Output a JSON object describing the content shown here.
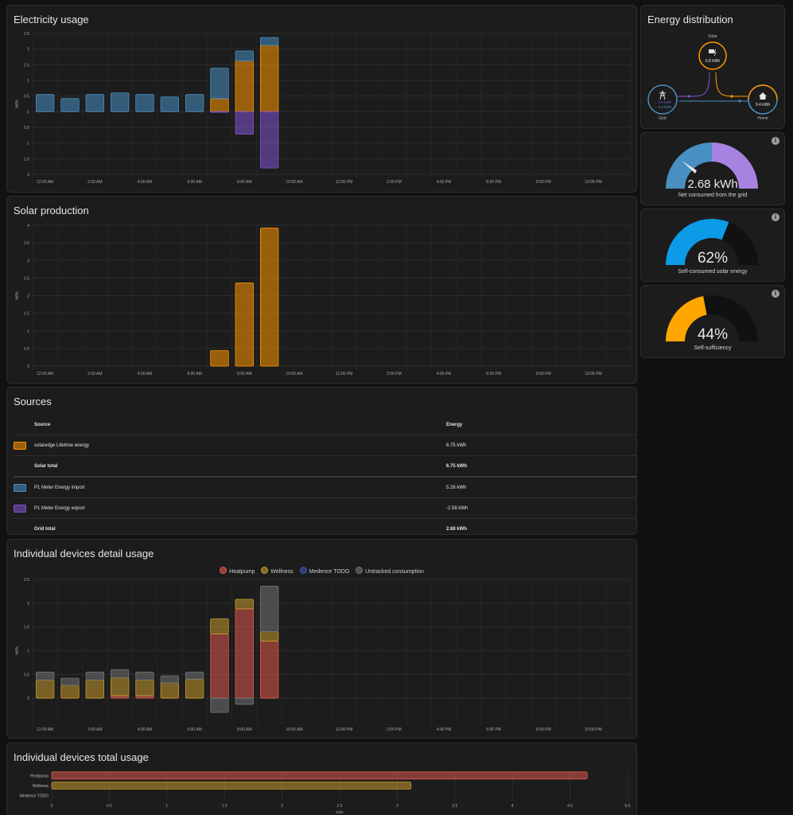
{
  "colors": {
    "grid": "#488fc2",
    "solar": "#ff9800",
    "return": "#8353d1",
    "heatpump": "#e05a4f",
    "wellness": "#c79b2e",
    "medence": "#3f51b5",
    "untracked": "#757575"
  },
  "electricity": {
    "title": "Electricity usage",
    "ylabel": "kWh",
    "yticks_pos": [
      "2.5",
      "2",
      "1.5",
      "1",
      "0.5",
      "0"
    ],
    "yticks_neg": [
      "0.5",
      "1",
      "1.5",
      "2"
    ],
    "xticks": [
      "12:00 AM",
      "2:00 AM",
      "4:00 AM",
      "6:00 AM",
      "8:00 AM",
      "10:00 AM",
      "12:00 PM",
      "2:00 PM",
      "4:00 PM",
      "6:00 PM",
      "8:00 PM",
      "10:00 PM"
    ]
  },
  "chart_data": [
    {
      "type": "bar",
      "title": "Electricity usage",
      "ylabel": "kWh",
      "ylim": [
        -2,
        2.5
      ],
      "hours": [
        0,
        1,
        2,
        3,
        4,
        5,
        6,
        7,
        8,
        9
      ],
      "series": [
        {
          "name": "P1 Meter Energy import",
          "values": [
            0.55,
            0.42,
            0.55,
            0.6,
            0.55,
            0.47,
            0.55,
            0.97,
            0.32,
            0.25
          ]
        },
        {
          "name": "solaredge Lifetime energy",
          "values": [
            0,
            0,
            0,
            0,
            0,
            0,
            0,
            0.42,
            1.62,
            2.12
          ]
        },
        {
          "name": "P1 Meter Energy export",
          "values": [
            0,
            0,
            0,
            0,
            0,
            0,
            0,
            -0.02,
            -0.72,
            -1.8
          ]
        }
      ]
    },
    {
      "type": "bar",
      "title": "Solar production",
      "ylabel": "kWh",
      "ylim": [
        0,
        4
      ],
      "hours": [
        0,
        1,
        2,
        3,
        4,
        5,
        6,
        7,
        8,
        9
      ],
      "values": [
        0,
        0,
        0,
        0,
        0,
        0,
        0,
        0.44,
        2.36,
        3.92
      ]
    },
    {
      "type": "bar",
      "title": "Individual devices detail usage",
      "ylabel": "kWh",
      "ylim": [
        -0.5,
        2.5
      ],
      "hours": [
        0,
        1,
        2,
        3,
        4,
        5,
        6,
        7,
        8,
        9
      ],
      "series": [
        {
          "name": "Heatpump",
          "values": [
            0,
            0,
            0,
            0.05,
            0.05,
            0,
            0,
            1.35,
            1.88,
            1.2
          ]
        },
        {
          "name": "Wellness",
          "values": [
            0.38,
            0.27,
            0.38,
            0.38,
            0.33,
            0.32,
            0.4,
            0.32,
            0.2,
            0.2
          ]
        },
        {
          "name": "Medence TODO",
          "values": [
            0,
            0,
            0,
            0,
            0,
            0,
            0,
            0,
            0,
            0
          ]
        },
        {
          "name": "Untracked consumption",
          "values": [
            0.17,
            0.15,
            0.17,
            0.17,
            0.17,
            0.15,
            0.15,
            -0.3,
            -0.13,
            0.96
          ]
        }
      ]
    },
    {
      "type": "bar",
      "title": "Individual devices total usage",
      "orientation": "horizontal",
      "categories": [
        "Heatpump",
        "Wellness",
        "Medence TODO"
      ],
      "values": [
        4.65,
        3.12,
        0
      ],
      "xlabel": "kWh",
      "xlim": [
        0,
        5
      ]
    }
  ],
  "solar": {
    "title": "Solar production",
    "ylabel": "kWh",
    "yticks": [
      "4",
      "3.5",
      "3",
      "2.5",
      "2",
      "1.5",
      "1",
      "0.5",
      "0"
    ]
  },
  "sources": {
    "title": "Sources",
    "col_source": "Source",
    "col_energy": "Energy",
    "rows": [
      {
        "name": "solaredge Lifetime energy",
        "energy": "6.75 kWh"
      },
      {
        "name": "Solar total",
        "energy": "6.75 kWh"
      },
      {
        "name": "P1 Meter Energy import",
        "energy": "5.26 kWh"
      },
      {
        "name": "P1 Meter Energy export",
        "energy": "-2.58 kWh"
      },
      {
        "name": "Grid total",
        "energy": "2.68 kWh"
      }
    ]
  },
  "devices_detail": {
    "title": "Individual devices detail usage",
    "ylabel": "kWh",
    "legend": [
      "Heatpump",
      "Wellness",
      "Medence TODO",
      "Untracked consumption"
    ],
    "yticks": [
      "2.5",
      "2",
      "1.5",
      "1",
      "0.5",
      "0"
    ]
  },
  "devices_total": {
    "title": "Individual devices total usage",
    "xticks": [
      "0",
      "0.5",
      "1",
      "1.5",
      "2",
      "2.5",
      "3",
      "3.5",
      "4",
      "4.5",
      "5.0"
    ],
    "xlabel": "kWh"
  },
  "distribution": {
    "title": "Energy distribution",
    "solar_label": "Solar",
    "solar_value": "6.8 kWh",
    "grid_label": "Grid",
    "grid_in": "2.6 kWh",
    "grid_out": "5.3 kWh",
    "home_label": "Home",
    "home_value": "9.4 kWh"
  },
  "gauges": [
    {
      "value": "2.68 kWh",
      "label": "Net consumed from the grid"
    },
    {
      "value": "62%",
      "label": "Self-consumed solar energy",
      "fraction": 0.62
    },
    {
      "value": "44%",
      "label": "Self-sufficiency",
      "fraction": 0.44
    }
  ],
  "info_glyph": "i"
}
